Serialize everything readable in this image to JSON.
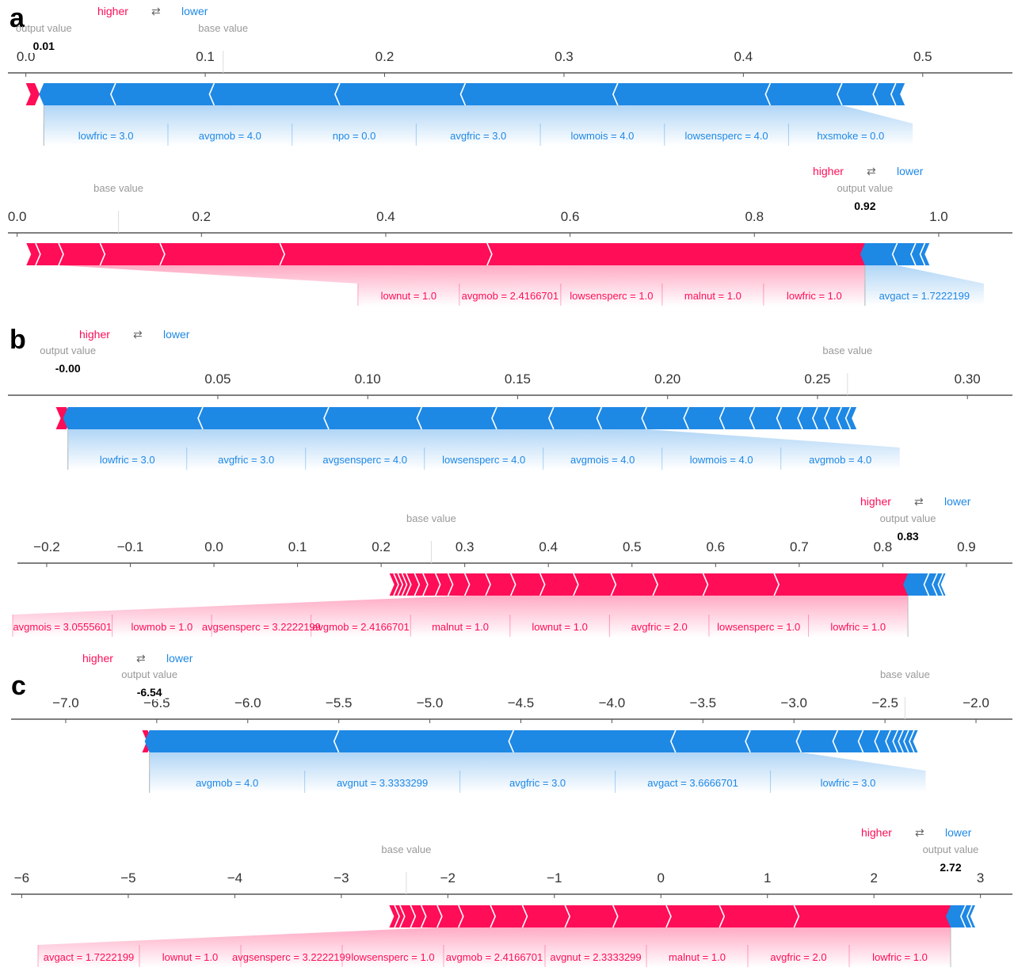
{
  "colors": {
    "positive": "#ff0d57",
    "negative": "#1e88e5",
    "axis": "#555555",
    "muted": "#999999"
  },
  "labels": {
    "higher": "higher",
    "lower": "lower",
    "arrows": "⇄",
    "output_value": "output value",
    "base_value": "base value"
  },
  "panels": [
    {
      "letter": "a"
    },
    {
      "letter": "b"
    },
    {
      "letter": "c"
    }
  ],
  "chart_data": [
    {
      "type": "force",
      "panel": "a",
      "xlim": [
        -0.01,
        0.55
      ],
      "ticks": [
        "0.0",
        "0.1",
        "0.2",
        "0.3",
        "0.4",
        "0.5"
      ],
      "tick_values": [
        0.0,
        0.1,
        0.2,
        0.3,
        0.4,
        0.5
      ],
      "output_value": 0.01,
      "output_label": "0.01",
      "base_value": 0.11,
      "bar_range": [
        0.0,
        0.49
      ],
      "positive_boundaries": [
        0.0,
        0.005
      ],
      "negative_boundaries": [
        0.01,
        0.05,
        0.105,
        0.175,
        0.245,
        0.33,
        0.415,
        0.455,
        0.475,
        0.485,
        0.49
      ],
      "positive_labels": [],
      "negative_labels": [
        "lowfric = 3.0",
        "avgmob = 4.0",
        "npo = 0.0",
        "avgfric = 3.0",
        "lowmois = 4.0",
        "lowsensperc = 4.0",
        "hxsmoke = 0.0"
      ],
      "negative_label_count": 7
    },
    {
      "type": "force",
      "panel": "a",
      "xlim": [
        -0.01,
        1.08
      ],
      "ticks": [
        "0.0",
        "0.2",
        "0.4",
        "0.6",
        "0.8",
        "1.0"
      ],
      "tick_values": [
        0.0,
        0.2,
        0.4,
        0.6,
        0.8,
        1.0
      ],
      "output_value": 0.92,
      "output_label": "0.92",
      "base_value": 0.11,
      "bar_range": [
        0.01,
        0.99
      ],
      "positive_boundaries": [
        0.01,
        0.02,
        0.045,
        0.09,
        0.155,
        0.285,
        0.51,
        0.92
      ],
      "negative_boundaries": [
        0.92,
        0.955,
        0.975,
        0.985,
        0.99
      ],
      "positive_labels": [
        "lownut = 1.0",
        "avgmob = 2.4166701",
        "lowsensperc = 1.0",
        "malnut = 1.0",
        "lowfric = 1.0"
      ],
      "negative_labels": [
        "avgact = 1.7222199"
      ]
    },
    {
      "type": "force",
      "panel": "b",
      "xlim": [
        -0.02,
        0.315
      ],
      "ticks": [
        "0.05",
        "0.10",
        "0.15",
        "0.20",
        "0.25",
        "0.30"
      ],
      "tick_values": [
        0.05,
        0.1,
        0.15,
        0.2,
        0.25,
        0.3
      ],
      "output_value": 0.0,
      "output_label": "-0.00",
      "base_value": 0.26,
      "bar_range": [
        -0.004,
        0.263
      ],
      "positive_boundaries": [
        -0.004,
        -0.0005
      ],
      "negative_boundaries": [
        0.0,
        0.045,
        0.087,
        0.118,
        0.143,
        0.162,
        0.178,
        0.193,
        0.207,
        0.219,
        0.229,
        0.238,
        0.245,
        0.25,
        0.254,
        0.258,
        0.261,
        0.263
      ],
      "positive_labels": [],
      "negative_labels": [
        "lowfric = 3.0",
        "avgfric = 3.0",
        "avgsensperc = 4.0",
        "lowsensperc = 4.0",
        "avgmois = 4.0",
        "lowmois = 4.0",
        "avgmob = 4.0"
      ]
    },
    {
      "type": "force",
      "panel": "b",
      "xlim": [
        -0.235,
        0.955
      ],
      "ticks": [
        "−0.2",
        "−0.1",
        "0.0",
        "0.1",
        "0.2",
        "0.3",
        "0.4",
        "0.5",
        "0.6",
        "0.7",
        "0.8",
        "0.9"
      ],
      "tick_values": [
        -0.2,
        -0.1,
        0.0,
        0.1,
        0.2,
        0.3,
        0.4,
        0.5,
        0.6,
        0.7,
        0.8,
        0.9
      ],
      "output_value": 0.83,
      "output_label": "0.83",
      "base_value": 0.26,
      "bar_range": [
        0.21,
        0.875
      ],
      "positive_boundaries": [
        0.21,
        0.215,
        0.22,
        0.225,
        0.23,
        0.24,
        0.25,
        0.265,
        0.28,
        0.3,
        0.325,
        0.355,
        0.39,
        0.43,
        0.475,
        0.525,
        0.585,
        0.67,
        0.83
      ],
      "negative_boundaries": [
        0.83,
        0.855,
        0.865,
        0.872,
        0.875
      ],
      "positive_labels": [
        "avgmois = 3.0555601",
        "lowmob = 1.0",
        "avgsensperc = 3.2222199",
        "avgmob = 2.4166701",
        "malnut = 1.0",
        "lownut = 1.0",
        "avgfric = 2.0",
        "lowsensperc = 1.0",
        "lowfric = 1.0"
      ],
      "negative_labels": []
    },
    {
      "type": "force",
      "panel": "c",
      "xlim": [
        -7.3,
        -1.8
      ],
      "ticks": [
        "−7.0",
        "−6.5",
        "−6.0",
        "−5.5",
        "−5.0",
        "−4.5",
        "−4.0",
        "−3.5",
        "−3.0",
        "−2.5",
        "−2.0"
      ],
      "tick_values": [
        -7.0,
        -6.5,
        -6.0,
        -5.5,
        -5.0,
        -4.5,
        -4.0,
        -3.5,
        -3.0,
        -2.5,
        -2.0
      ],
      "output_value": -6.54,
      "output_label": "-6.54",
      "base_value": -2.39,
      "bar_range": [
        -6.58,
        -2.32
      ],
      "positive_boundaries": [
        -6.58,
        -6.55
      ],
      "negative_boundaries": [
        -6.54,
        -5.5,
        -4.54,
        -3.65,
        -3.24,
        -2.96,
        -2.76,
        -2.62,
        -2.53,
        -2.47,
        -2.43,
        -2.4,
        -2.37,
        -2.34,
        -2.32
      ],
      "positive_labels": [],
      "negative_labels": [
        "avgmob = 4.0",
        "avgnut = 3.3333299",
        "avgfric = 3.0",
        "avgact = 3.6666701",
        "lowfric = 3.0"
      ]
    },
    {
      "type": "force",
      "panel": "c",
      "xlim": [
        -6.1,
        3.3
      ],
      "ticks": [
        "−6",
        "−5",
        "−4",
        "−3",
        "−2",
        "−1",
        "0",
        "1",
        "2",
        "3"
      ],
      "tick_values": [
        -6,
        -5,
        -4,
        -3,
        -2,
        -1,
        0,
        1,
        2,
        3
      ],
      "output_value": 2.72,
      "output_label": "2.72",
      "base_value": -2.39,
      "bar_range": [
        -2.55,
        2.95
      ],
      "positive_boundaries": [
        -2.55,
        -2.5,
        -2.45,
        -2.35,
        -2.25,
        -2.1,
        -1.9,
        -1.6,
        -1.3,
        -0.9,
        -0.45,
        0.05,
        0.55,
        1.25,
        2.72
      ],
      "negative_boundaries": [
        2.72,
        2.86,
        2.92,
        2.95
      ],
      "positive_labels": [
        "avgact = 1.7222199",
        "lownut = 1.0",
        "avgsensperc = 3.2222199",
        "lowsensperc = 1.0",
        "avgmob = 2.4166701",
        "avgnut = 2.3333299",
        "malnut = 1.0",
        "avgfric = 2.0",
        "lowfric = 1.0"
      ],
      "negative_labels": []
    }
  ]
}
